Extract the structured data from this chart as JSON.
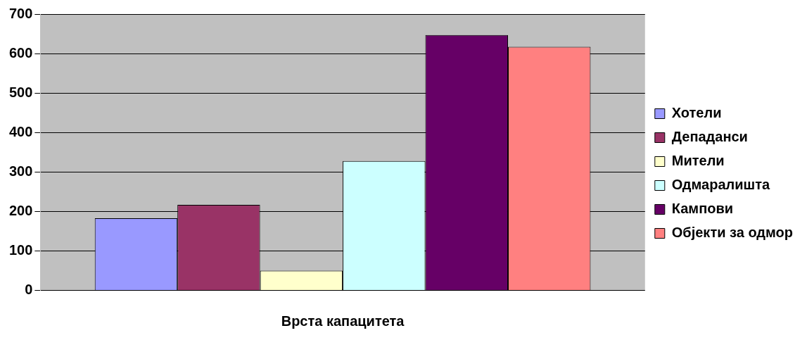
{
  "chart_data": {
    "type": "bar",
    "xlabel": "Врста капацитета",
    "categories": [
      null
    ],
    "series": [
      {
        "name": "Хотели",
        "color": "#9999ff",
        "values": [
          183
        ]
      },
      {
        "name": "Депаданси",
        "color": "#993366",
        "values": [
          217
        ]
      },
      {
        "name": "Мители",
        "color": "#ffffcc",
        "values": [
          50
        ]
      },
      {
        "name": "Одмаралишта",
        "color": "#ccffff",
        "values": [
          328
        ]
      },
      {
        "name": "Кампови",
        "color": "#660066",
        "values": [
          647
        ]
      },
      {
        "name": "Објекти за одмор",
        "color": "#ff8080",
        "values": [
          617
        ]
      }
    ],
    "ylim": [
      0,
      700
    ],
    "yticks": [
      0,
      100,
      200,
      300,
      400,
      500,
      600,
      700
    ],
    "grid": "y",
    "legend": "right"
  }
}
